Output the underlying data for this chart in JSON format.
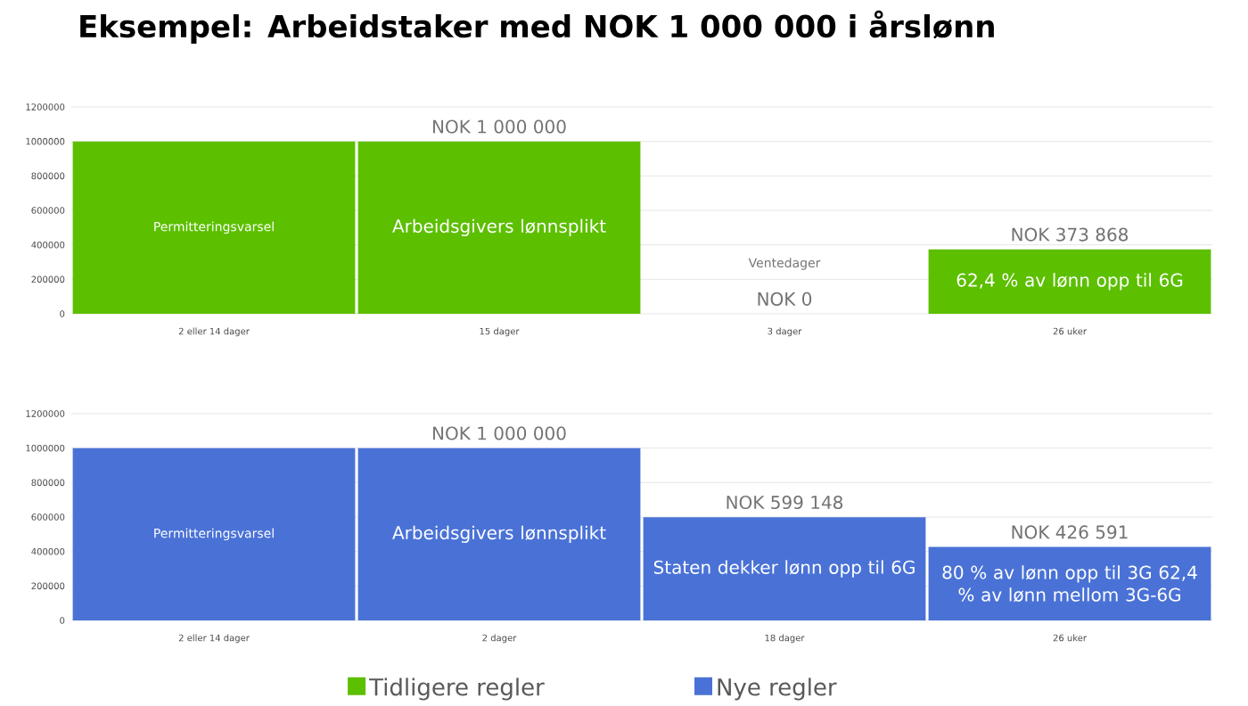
{
  "chart_data": [
    {
      "type": "bar",
      "title": "Eksempel: Arbeidstaker med NOK 1 000 000 i årslønn",
      "categories": [
        "2 eller 14 dager",
        "15 dager",
        "3 dager",
        "26 uker"
      ],
      "series": [
        {
          "name": "Tidligere regler",
          "color": "#5cbf00",
          "values": [
            1000000,
            1000000,
            0,
            373868
          ]
        }
      ],
      "value_labels": [
        null,
        "NOK 1 000 000",
        "NOK 0",
        "NOK 373 868"
      ],
      "annotations": [
        "Permitteringsvarsel",
        "Arbeidsgivers lønnsplikt",
        "Ventedager",
        "62,4 % av lønn opp til 6G"
      ],
      "ylim": [
        0,
        1200000
      ],
      "yticks": [
        0,
        200000,
        400000,
        600000,
        800000,
        1000000,
        1200000
      ],
      "grid": "y",
      "legend": "bottom"
    },
    {
      "type": "bar",
      "categories": [
        "2 eller 14 dager",
        "2 dager",
        "18 dager",
        "26 uker"
      ],
      "series": [
        {
          "name": "Nye regler",
          "color": "#4a72d6",
          "values": [
            1000000,
            1000000,
            599148,
            426591
          ]
        }
      ],
      "value_labels": [
        null,
        "NOK 1 000 000",
        "NOK 599 148",
        "NOK 426 591"
      ],
      "annotations": [
        "Permitteringsvarsel",
        "Arbeidsgivers lønnsplikt",
        "Staten dekker lønn opp til 6G",
        "80 % av lønn opp til 3G 62,4 % av lønn mellom 3G-6G"
      ],
      "ylim": [
        0,
        1200000
      ],
      "yticks": [
        0,
        200000,
        400000,
        600000,
        800000,
        1000000,
        1200000
      ],
      "grid": "y",
      "legend": "bottom"
    }
  ]
}
